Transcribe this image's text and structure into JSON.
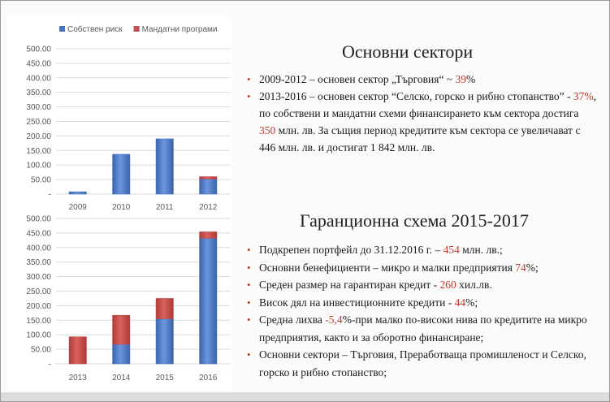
{
  "chart_data": [
    {
      "type": "bar",
      "stacked": true,
      "categories": [
        "2009",
        "2010",
        "2011",
        "2012"
      ],
      "series": [
        {
          "name": "Собствен риск",
          "color": "#4472c4",
          "values": [
            8,
            137,
            190,
            52
          ]
        },
        {
          "name": "Мандатни програми",
          "color": "#c0504d",
          "values": [
            0,
            0,
            0,
            8
          ]
        }
      ],
      "ylim": [
        0,
        500
      ],
      "yticks": [
        "-",
        "50.00",
        "100.00",
        "150.00",
        "200.00",
        "250.00",
        "300.00",
        "350.00",
        "400.00",
        "450.00",
        "500.00"
      ],
      "legend": "top",
      "grid": true
    },
    {
      "type": "bar",
      "stacked": true,
      "categories": [
        "2013",
        "2014",
        "2015",
        "2016"
      ],
      "series": [
        {
          "name": "Собствен риск",
          "color": "#4472c4",
          "values": [
            0,
            67,
            155,
            432
          ]
        },
        {
          "name": "Мандатни програми",
          "color": "#c0504d",
          "values": [
            93,
            100,
            70,
            22
          ]
        }
      ],
      "ylim": [
        0,
        500
      ],
      "yticks": [
        "-",
        "50.00",
        "100.00",
        "150.00",
        "200.00",
        "250.00",
        "300.00",
        "350.00",
        "400.00",
        "450.00",
        "500.00"
      ],
      "legend": "none",
      "grid": true
    }
  ],
  "sectors": {
    "title": "Основни сектори",
    "items": [
      {
        "a": "2009-2012 – основен сектор „Търговия“ ~ ",
        "b": "39",
        "c": "%"
      },
      {
        "a": "2013-2016 – основен сектор “Селско, горско и рибно стопанство” - ",
        "b": "37%",
        "c": ", по собствени и мандатни схеми финансирането към сектора достига ",
        "d": "350",
        "e": " млн. лв. За същия период кредитите към сектора се увеличават с 446 млн. лв. и достигат 1 842 млн. лв."
      }
    ]
  },
  "guarantee": {
    "title": "Гаранционна схема 2015-2017",
    "items": [
      {
        "a": "Подкрепен портфейл до 31.12.2016 г. – ",
        "b": "454",
        "c": " млн. лв.;"
      },
      {
        "a": "Основни бенефициенти – микро и малки предприятия ",
        "b": "74",
        "c": "%;"
      },
      {
        "a": "Среден размер на гарантиран кредит - ",
        "b": "260",
        "c": " хил.лв."
      },
      {
        "a": "Висок дял на инвестиционните кредити - ",
        "b": "44",
        "c": "%;"
      },
      {
        "a": "Средна лихва ",
        "b": "-5,4",
        "c": "%-при малко по-високи нива по кредитите на микро предприятия, както и за оборотно финансиране;"
      },
      {
        "a": "Основни сектори – Търговия, Преработваща промишленост и Селско, горско и рибно стопанство;"
      }
    ]
  }
}
